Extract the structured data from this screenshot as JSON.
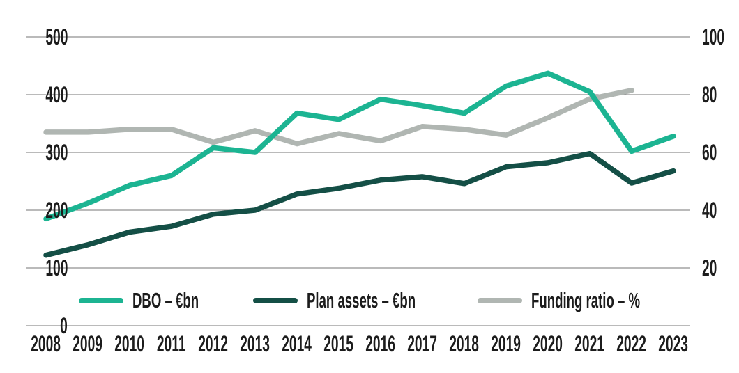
{
  "chart_data": {
    "type": "line",
    "title": "",
    "x": [
      2008,
      2009,
      2010,
      2011,
      2012,
      2013,
      2014,
      2015,
      2016,
      2017,
      2018,
      2019,
      2020,
      2021,
      2022,
      2023
    ],
    "series": [
      {
        "name": "Funding ratio – %",
        "axis": "right",
        "color": "#b0b6b2",
        "values": [
          67,
          67,
          68,
          68,
          63.5,
          67.5,
          63,
          66.5,
          64,
          69,
          68,
          66,
          72,
          78.5,
          81.5,
          null
        ]
      },
      {
        "name": "Plan assets – €bn",
        "axis": "left",
        "color": "#144f46",
        "values": [
          122,
          140,
          162,
          172,
          193,
          200,
          228,
          238,
          252,
          258,
          246,
          275,
          282,
          298,
          247,
          268
        ]
      },
      {
        "name": "DBO – €bn",
        "axis": "left",
        "color": "#1cb492",
        "values": [
          185,
          212,
          243,
          260,
          308,
          300,
          368,
          357,
          392,
          381,
          368,
          415,
          437,
          405,
          302,
          328
        ]
      }
    ],
    "left_axis": {
      "range": [
        0,
        500
      ],
      "ticks": [
        0,
        100,
        200,
        300,
        400,
        500
      ],
      "labels": [
        "0",
        "100",
        "200",
        "300",
        "400",
        "500"
      ]
    },
    "right_axis": {
      "range": [
        0,
        100
      ],
      "ticks": [
        20,
        40,
        60,
        80,
        100
      ],
      "labels": [
        "20",
        "40",
        "60",
        "80",
        "100"
      ]
    },
    "grid": "horizontal",
    "gridline_color": "#757575",
    "legend_position": "bottom",
    "legend_order": [
      "DBO – €bn",
      "Plan assets – €bn",
      "Funding ratio – %"
    ]
  },
  "legend": {
    "items": [
      {
        "label": "DBO – €bn",
        "color": "#1cb492"
      },
      {
        "label": "Plan assets – €bn",
        "color": "#144f46"
      },
      {
        "label": "Funding ratio – %",
        "color": "#b0b6b2"
      }
    ]
  },
  "colors": {
    "background": "#ffffff",
    "text": "#1c1c1c",
    "dbo": "#1cb492",
    "plan_assets": "#144f46",
    "funding_ratio": "#b0b6b2",
    "gridline": "#757575"
  }
}
